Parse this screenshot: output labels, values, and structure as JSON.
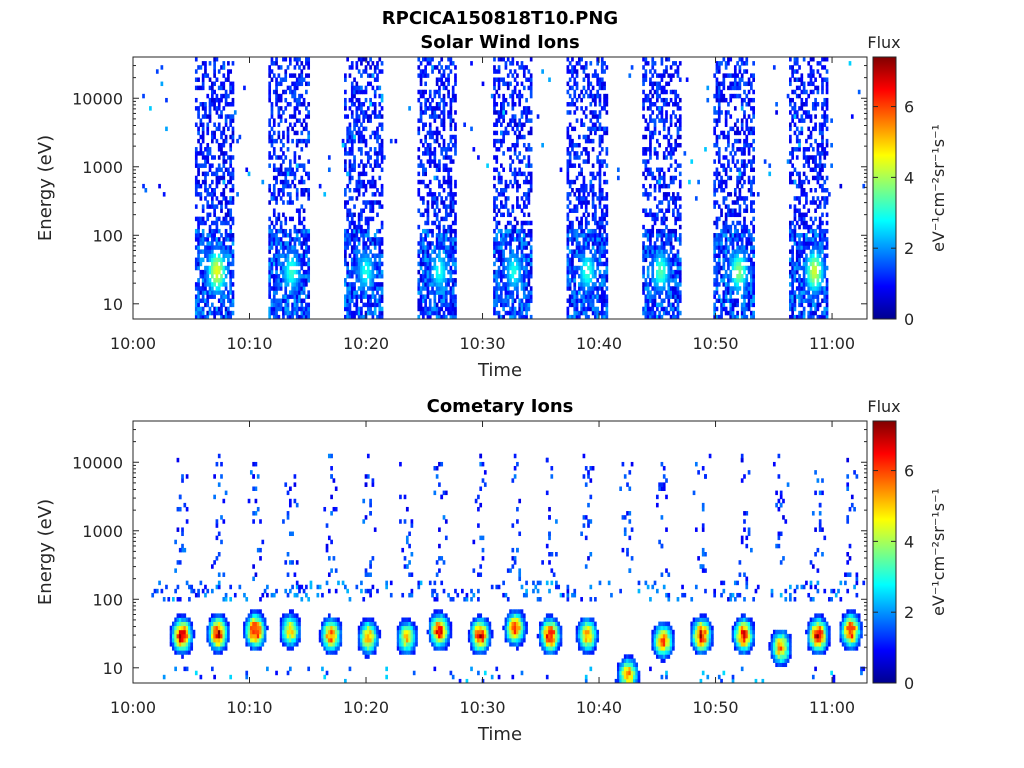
{
  "figure_title": "RPCICA150818T10.PNG",
  "chart_data": [
    {
      "type": "heatmap",
      "title": "Solar Wind Ions",
      "xlabel": "Time",
      "ylabel": "Energy (eV)",
      "x_ticks": [
        "10:00",
        "10:10",
        "10:20",
        "10:30",
        "10:40",
        "10:50",
        "11:00"
      ],
      "x_range_minutes": [
        0,
        63
      ],
      "y_scale": "log",
      "y_ticks": [
        "10",
        "100",
        "1000",
        "10000"
      ],
      "y_range": [
        6,
        40000
      ],
      "colorbar": {
        "label": "Flux",
        "units": "eV⁻¹cm⁻²sr⁻¹s⁻¹",
        "ticks": [
          "0",
          "2",
          "4",
          "6"
        ],
        "range": [
          0,
          7.4
        ]
      },
      "bursts": [
        {
          "t_start": 5.4,
          "t_end": 8.6,
          "peak_time": 7.2,
          "peak_energy": 30,
          "peak_flux": 4.5
        },
        {
          "t_start": 11.8,
          "t_end": 15.0,
          "peak_time": 13.6,
          "peak_energy": 30,
          "peak_flux": 3.2
        },
        {
          "t_start": 18.2,
          "t_end": 21.4,
          "peak_time": 20.0,
          "peak_energy": 30,
          "peak_flux": 3.0
        },
        {
          "t_start": 24.6,
          "t_end": 27.6,
          "peak_time": 26.3,
          "peak_energy": 30,
          "peak_flux": 3.0
        },
        {
          "t_start": 31.0,
          "t_end": 34.2,
          "peak_time": 32.7,
          "peak_energy": 30,
          "peak_flux": 3.0
        },
        {
          "t_start": 37.4,
          "t_end": 40.6,
          "peak_time": 39.0,
          "peak_energy": 30,
          "peak_flux": 3.2
        },
        {
          "t_start": 43.8,
          "t_end": 47.0,
          "peak_time": 45.3,
          "peak_energy": 30,
          "peak_flux": 3.4
        },
        {
          "t_start": 50.0,
          "t_end": 53.2,
          "peak_time": 52.0,
          "peak_energy": 30,
          "peak_flux": 3.8
        },
        {
          "t_start": 56.4,
          "t_end": 59.6,
          "peak_time": 58.5,
          "peak_energy": 30,
          "peak_flux": 4.3
        }
      ]
    },
    {
      "type": "heatmap",
      "title": "Cometary Ions",
      "xlabel": "Time",
      "ylabel": "Energy (eV)",
      "x_ticks": [
        "10:00",
        "10:10",
        "10:20",
        "10:30",
        "10:40",
        "10:50",
        "11:00"
      ],
      "x_range_minutes": [
        0,
        63
      ],
      "y_scale": "log",
      "y_ticks": [
        "10",
        "100",
        "1000",
        "10000"
      ],
      "y_range": [
        6,
        40000
      ],
      "colorbar": {
        "label": "Flux",
        "units": "eV⁻¹cm⁻²sr⁻¹s⁻¹",
        "ticks": [
          "0",
          "2",
          "4",
          "6"
        ],
        "range": [
          0,
          7.4
        ]
      },
      "blobs": [
        {
          "time": 4.2,
          "energy": 30,
          "peak_flux": 7.0
        },
        {
          "time": 7.3,
          "energy": 32,
          "peak_flux": 6.8
        },
        {
          "time": 10.5,
          "energy": 35,
          "peak_flux": 7.0
        },
        {
          "time": 13.5,
          "energy": 35,
          "peak_flux": 5.0
        },
        {
          "time": 17.0,
          "energy": 30,
          "peak_flux": 6.0
        },
        {
          "time": 20.2,
          "energy": 28,
          "peak_flux": 5.5
        },
        {
          "time": 23.5,
          "energy": 28,
          "peak_flux": 5.0
        },
        {
          "time": 26.3,
          "energy": 35,
          "peak_flux": 6.5
        },
        {
          "time": 29.8,
          "energy": 30,
          "peak_flux": 6.5
        },
        {
          "time": 32.8,
          "energy": 38,
          "peak_flux": 6.0
        },
        {
          "time": 35.8,
          "energy": 30,
          "peak_flux": 6.8
        },
        {
          "time": 39.0,
          "energy": 30,
          "peak_flux": 5.5
        },
        {
          "time": 42.5,
          "energy": 8,
          "peak_flux": 5.5
        },
        {
          "time": 45.5,
          "energy": 25,
          "peak_flux": 6.0
        },
        {
          "time": 48.8,
          "energy": 30,
          "peak_flux": 6.8
        },
        {
          "time": 52.4,
          "energy": 30,
          "peak_flux": 6.5
        },
        {
          "time": 55.6,
          "energy": 20,
          "peak_flux": 5.5
        },
        {
          "time": 58.8,
          "energy": 30,
          "peak_flux": 7.0
        },
        {
          "time": 61.6,
          "energy": 35,
          "peak_flux": 6.5
        }
      ]
    }
  ]
}
